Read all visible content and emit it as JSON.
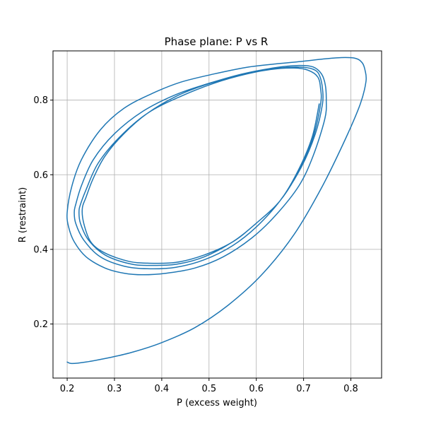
{
  "chart_data": {
    "type": "line",
    "title": "Phase plane: P vs R",
    "xlabel": "P (excess weight)",
    "ylabel": "R (restraint)",
    "xlim": [
      0.17,
      0.865
    ],
    "ylim": [
      0.055,
      0.932
    ],
    "xticks": [
      0.2,
      0.3,
      0.4,
      0.5,
      0.6,
      0.7,
      0.8
    ],
    "yticks": [
      0.2,
      0.4,
      0.6,
      0.8
    ],
    "xtick_labels": [
      "0.2",
      "0.3",
      "0.4",
      "0.5",
      "0.6",
      "0.7",
      "0.8"
    ],
    "ytick_labels": [
      "0.2",
      "0.4",
      "0.6",
      "0.8"
    ],
    "grid": true,
    "legend": "none",
    "color": "#1f77b4",
    "series": [
      {
        "x": [
          0.2,
          0.21,
          0.24,
          0.29,
          0.34,
          0.4,
          0.47,
          0.54,
          0.61,
          0.68,
          0.74,
          0.79,
          0.82,
          0.832,
          0.83,
          0.824,
          0.81,
          0.78,
          0.74,
          0.69,
          0.64,
          0.58,
          0.51,
          0.44,
          0.38,
          0.32,
          0.27,
          0.23,
          0.21,
          0.2,
          0.203,
          0.215,
          0.24,
          0.28,
          0.32,
          0.36,
          0.41,
          0.47,
          0.53,
          0.59,
          0.64,
          0.69,
          0.72,
          0.745,
          0.748,
          0.746,
          0.738,
          0.72,
          0.69,
          0.64,
          0.57,
          0.5,
          0.43,
          0.36,
          0.3,
          0.255,
          0.23,
          0.218,
          0.215,
          0.218,
          0.235,
          0.27,
          0.32,
          0.37,
          0.43,
          0.49,
          0.55,
          0.6,
          0.65,
          0.695,
          0.725,
          0.74,
          0.74,
          0.735,
          0.725,
          0.7,
          0.65,
          0.58,
          0.51,
          0.44,
          0.37,
          0.31,
          0.265,
          0.24,
          0.228,
          0.225,
          0.228,
          0.245,
          0.28,
          0.33,
          0.37,
          0.43,
          0.49,
          0.55,
          0.6,
          0.65,
          0.69,
          0.72,
          0.736,
          0.736,
          0.73,
          0.71,
          0.68,
          0.63,
          0.56,
          0.49,
          0.43,
          0.37,
          0.32,
          0.28,
          0.255,
          0.24,
          0.232,
          0.235,
          0.25,
          0.28,
          0.33,
          0.37,
          0.43,
          0.49,
          0.55,
          0.6,
          0.65,
          0.688,
          0.718,
          0.733
        ],
        "y": [
          0.098,
          0.094,
          0.098,
          0.11,
          0.125,
          0.15,
          0.19,
          0.25,
          0.33,
          0.44,
          0.57,
          0.7,
          0.79,
          0.85,
          0.88,
          0.9,
          0.912,
          0.914,
          0.91,
          0.903,
          0.897,
          0.888,
          0.87,
          0.848,
          0.818,
          0.778,
          0.72,
          0.64,
          0.57,
          0.5,
          0.46,
          0.42,
          0.38,
          0.35,
          0.336,
          0.332,
          0.336,
          0.35,
          0.38,
          0.43,
          0.49,
          0.57,
          0.65,
          0.75,
          0.8,
          0.84,
          0.87,
          0.889,
          0.893,
          0.887,
          0.87,
          0.845,
          0.815,
          0.77,
          0.71,
          0.64,
          0.57,
          0.52,
          0.5,
          0.47,
          0.425,
          0.38,
          0.355,
          0.348,
          0.352,
          0.372,
          0.41,
          0.46,
          0.53,
          0.62,
          0.71,
          0.79,
          0.83,
          0.862,
          0.88,
          0.888,
          0.886,
          0.87,
          0.845,
          0.81,
          0.765,
          0.7,
          0.63,
          0.56,
          0.52,
          0.5,
          0.47,
          0.425,
          0.385,
          0.362,
          0.357,
          0.36,
          0.38,
          0.42,
          0.47,
          0.53,
          0.61,
          0.7,
          0.79,
          0.83,
          0.862,
          0.88,
          0.886,
          0.882,
          0.865,
          0.84,
          0.81,
          0.765,
          0.71,
          0.65,
          0.59,
          0.54,
          0.51,
          0.47,
          0.42,
          0.39,
          0.368,
          0.363,
          0.365,
          0.385,
          0.42,
          0.47,
          0.53,
          0.61,
          0.7,
          0.79
        ]
      }
    ]
  }
}
